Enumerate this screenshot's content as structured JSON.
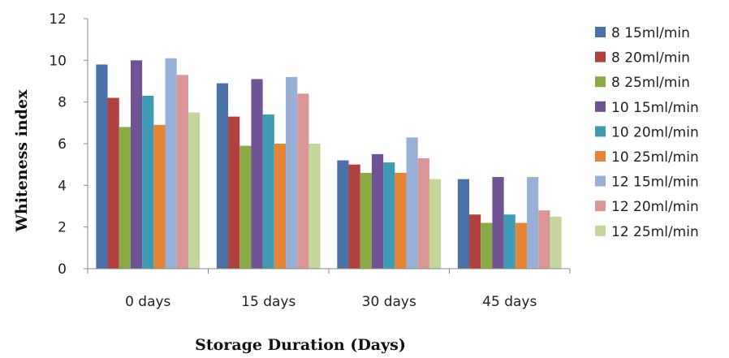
{
  "chart_data": {
    "type": "bar",
    "xlabel": "Storage Duration (Days)",
    "ylabel": "Whiteness index",
    "ylim": [
      0,
      12
    ],
    "yticks": [
      0,
      2,
      4,
      6,
      8,
      10,
      12
    ],
    "grid": false,
    "legend_position": "right",
    "categories": [
      "0 days",
      "15 days",
      "30 days",
      "45 days"
    ],
    "series": [
      {
        "name": "8 15ml/min",
        "color": "#4A72A8",
        "values": [
          9.8,
          8.9,
          5.2,
          4.3
        ]
      },
      {
        "name": "8 20ml/min",
        "color": "#B0413E",
        "values": [
          8.2,
          7.3,
          5.0,
          2.6
        ]
      },
      {
        "name": "8 25ml/min",
        "color": "#8AAA45",
        "values": [
          6.8,
          5.9,
          4.6,
          2.2
        ]
      },
      {
        "name": "10 15ml/min",
        "color": "#6F5394",
        "values": [
          10.0,
          9.1,
          5.5,
          4.4
        ]
      },
      {
        "name": "10 20ml/min",
        "color": "#3E9BB3",
        "values": [
          8.3,
          7.4,
          5.1,
          2.6
        ]
      },
      {
        "name": "10 25ml/min",
        "color": "#E58433",
        "values": [
          6.9,
          6.0,
          4.6,
          2.2
        ]
      },
      {
        "name": "12 15ml/min",
        "color": "#98AFD8",
        "values": [
          10.1,
          9.2,
          6.3,
          4.4
        ]
      },
      {
        "name": "12 20ml/min",
        "color": "#D99694",
        "values": [
          9.3,
          8.4,
          5.3,
          2.8
        ]
      },
      {
        "name": "12 25ml/min",
        "color": "#C3D69B",
        "values": [
          7.5,
          6.0,
          4.3,
          2.5
        ]
      }
    ]
  }
}
